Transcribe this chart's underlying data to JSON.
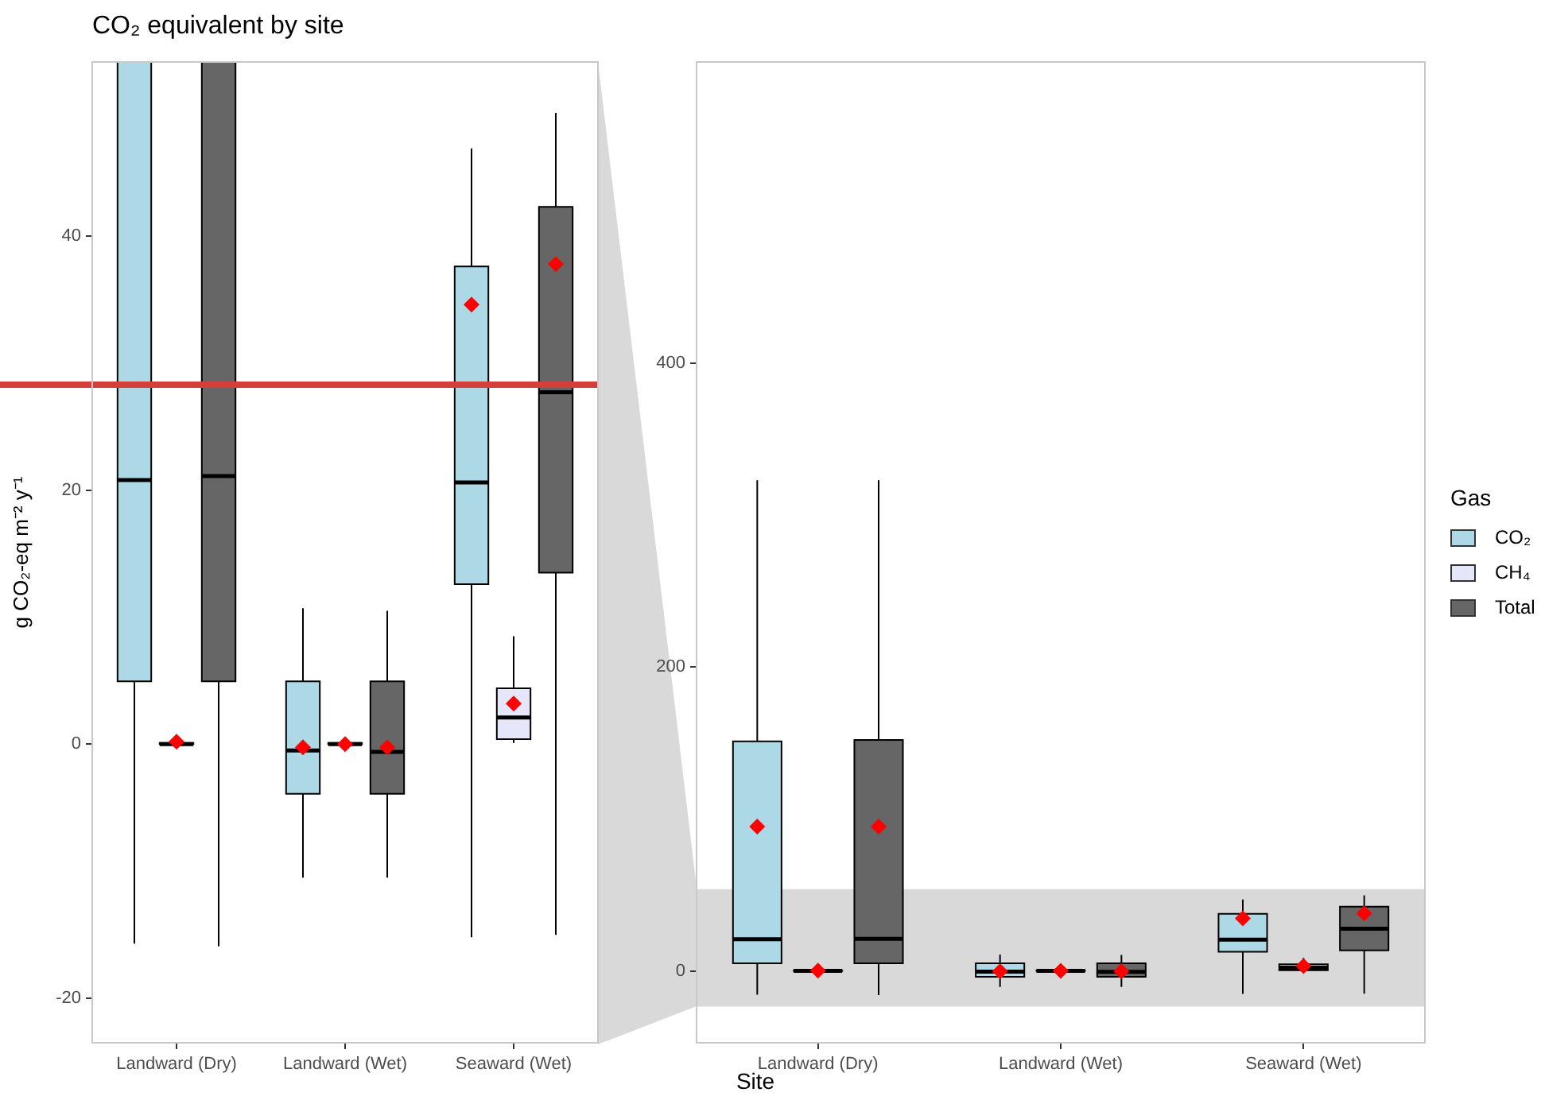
{
  "chart_data": [
    {
      "type": "box",
      "title": "CO₂ equivalent by site",
      "ylabel": "g CO₂-eq m⁻² y⁻¹",
      "categories": [
        "Landward (Dry)",
        "Landward (Wet)",
        "Seaward (Wet)"
      ],
      "series": [
        {
          "color": "#add8e6",
          "boxes": [
            {
              "low": -15.7,
              "q1": 4.95,
              "median": 20.8,
              "q3": 151,
              "high": 322.8
            },
            {
              "low": -10.5,
              "q1": -3.9,
              "median": -0.5,
              "q3": 4.95,
              "high": 10.7,
              "mean": -0.25
            },
            {
              "low": -15.2,
              "q1": 12.6,
              "median": 20.6,
              "q3": 37.6,
              "high": 46.9,
              "mean": 34.6
            }
          ]
        },
        {
          "color": "#e6e6fa",
          "boxes": [
            {
              "low": 0,
              "q1": 0,
              "median": 0,
              "q3": 0.1,
              "high": 0.2,
              "mean": 0.2
            },
            {
              "low": 0,
              "q1": 0,
              "median": 0,
              "q3": 0.1,
              "high": 0.2,
              "mean": 0
            },
            {
              "low": 0.1,
              "q1": 0.4,
              "median": 2.1,
              "q3": 4.4,
              "high": 8.5,
              "mean": 3.2
            }
          ]
        },
        {
          "color": "#666666",
          "boxes": [
            {
              "low": -15.9,
              "q1": 4.95,
              "median": 21.1,
              "q3": 152,
              "high": 322.8
            },
            {
              "low": -10.5,
              "q1": -3.9,
              "median": -0.6,
              "q3": 4.95,
              "high": 10.5,
              "mean": -0.25
            },
            {
              "low": -15,
              "q1": 13.5,
              "median": 27.7,
              "q3": 42.3,
              "high": 49.7,
              "mean": 37.8
            }
          ]
        }
      ],
      "ylim": [
        -23.5,
        53.7
      ],
      "yticks": [
        -20,
        0,
        20,
        40
      ],
      "ref_lines": [
        {
          "axis": "y",
          "value": 28.3,
          "color": "#d43f3a"
        }
      ]
    },
    {
      "type": "box",
      "xlabel": "Site",
      "legend_title": "Gas",
      "legend": "right",
      "categories": [
        "Landward (Dry)",
        "Landward (Wet)",
        "Seaward (Wet)"
      ],
      "series": [
        {
          "name": "CO₂",
          "color": "#add8e6",
          "boxes": [
            {
              "low": -15.7,
              "q1": 4.95,
              "median": 20.8,
              "q3": 151,
              "high": 322.8,
              "mean": 95
            },
            {
              "low": -10.5,
              "q1": -3.9,
              "median": -0.5,
              "q3": 4.95,
              "high": 10.7,
              "mean": -0.25
            },
            {
              "low": -15.2,
              "q1": 12.6,
              "median": 20.6,
              "q3": 37.6,
              "high": 46.9,
              "mean": 34.6
            }
          ]
        },
        {
          "name": "CH₄",
          "color": "#e6e6fa",
          "boxes": [
            {
              "low": 0,
              "q1": 0,
              "median": 0,
              "q3": 0.1,
              "high": 0.2,
              "mean": 0.2
            },
            {
              "low": 0,
              "q1": 0,
              "median": 0,
              "q3": 0.1,
              "high": 0.2,
              "mean": 0
            },
            {
              "low": 0.1,
              "q1": 0.4,
              "median": 2.1,
              "q3": 4.4,
              "high": 8.5,
              "mean": 3.2
            }
          ]
        },
        {
          "name": "Total",
          "color": "#666666",
          "boxes": [
            {
              "low": -15.9,
              "q1": 4.95,
              "median": 21.1,
              "q3": 152,
              "high": 322.8,
              "mean": 95
            },
            {
              "low": -10.5,
              "q1": -3.9,
              "median": -0.6,
              "q3": 4.95,
              "high": 10.5,
              "mean": -0.25
            },
            {
              "low": -15,
              "q1": 13.5,
              "median": 27.7,
              "q3": 42.3,
              "high": 49.7,
              "mean": 37.8
            }
          ]
        }
      ],
      "ylim": [
        -47.3,
        598
      ],
      "yticks": [
        0,
        200,
        400
      ],
      "bands": [
        {
          "axis": "y",
          "from": -23.5,
          "to": 53.7,
          "color": "#d9d9d9"
        }
      ]
    }
  ]
}
